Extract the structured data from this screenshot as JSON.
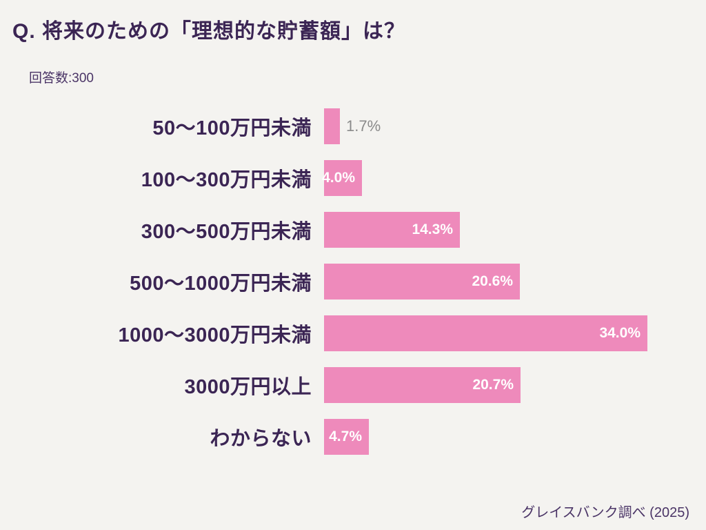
{
  "header": {
    "title": "Q. 将来のための「理想的な貯蓄額」は？",
    "respondents": "回答数:300"
  },
  "footer": {
    "source": "グレイスバンク調べ (2025)"
  },
  "colors": {
    "background": "#f4f3f0",
    "bar": "#ee8abb",
    "title_text": "#3b2554",
    "category_text": "#3b2554",
    "value_inside_text": "#ffffff",
    "value_outside_text": "#8a8a8a"
  },
  "chart_data": {
    "type": "bar",
    "orientation": "horizontal",
    "title": "Q. 将来のための「理想的な貯蓄額」は？",
    "sample_size_label": "回答数:300",
    "categories": [
      "50～100万円未満",
      "100～300万円未満",
      "300～500万円未満",
      "500～1000万円未満",
      "1000～3000万円未満",
      "3000万円以上",
      "わからない"
    ],
    "values": [
      1.7,
      4.0,
      14.3,
      20.6,
      34.0,
      20.7,
      4.7
    ],
    "value_labels": [
      "1.7%",
      "4.0%",
      "14.3%",
      "20.6%",
      "34.0%",
      "20.7%",
      "4.7%"
    ],
    "value_label_position": [
      "outside",
      "inside",
      "inside",
      "inside",
      "inside",
      "inside",
      "inside"
    ],
    "xlim": [
      0,
      40
    ],
    "grid": false,
    "legend": false
  }
}
